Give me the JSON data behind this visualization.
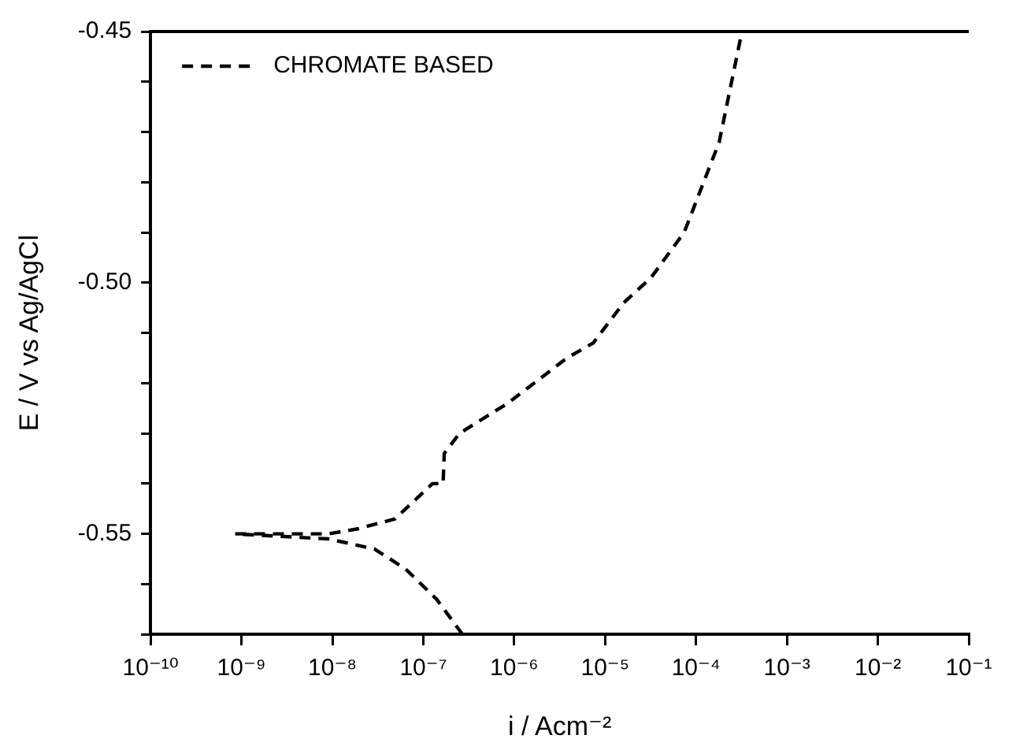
{
  "chart_data": {
    "type": "line",
    "xlabel": "i / Acm⁻²",
    "ylabel": "E / V vs Ag/AgCl",
    "log": "x",
    "grid": false,
    "legend": "top left",
    "marker": "none",
    "line_style": "dashed",
    "xlim": [
      1e-10,
      0.1
    ],
    "xticks": [
      {
        "value": 1e-10,
        "label": "10⁻¹⁰"
      },
      {
        "value": 1e-09,
        "label": "10⁻⁹"
      },
      {
        "value": 1e-08,
        "label": "10⁻⁸"
      },
      {
        "value": 1e-07,
        "label": "10⁻⁷"
      },
      {
        "value": 1e-06,
        "label": "10⁻⁶"
      },
      {
        "value": 1e-05,
        "label": "10⁻⁵"
      },
      {
        "value": 0.0001,
        "label": "10⁻⁴"
      },
      {
        "value": 0.001,
        "label": "10⁻³"
      },
      {
        "value": 0.01,
        "label": "10⁻²"
      },
      {
        "value": 0.1,
        "label": "10⁻¹"
      }
    ],
    "ylim": [
      -0.57,
      -0.45
    ],
    "yticks": [
      {
        "value": -0.57,
        "label": null
      },
      {
        "value": -0.56,
        "label": null
      },
      {
        "value": -0.55,
        "label": "-0.55"
      },
      {
        "value": -0.54,
        "label": null
      },
      {
        "value": -0.53,
        "label": null
      },
      {
        "value": -0.52,
        "label": null
      },
      {
        "value": -0.51,
        "label": null
      },
      {
        "value": -0.5,
        "label": "-0.50"
      },
      {
        "value": -0.49,
        "label": null
      },
      {
        "value": -0.48,
        "label": null
      },
      {
        "value": -0.47,
        "label": null
      },
      {
        "value": -0.46,
        "label": null
      },
      {
        "value": -0.45,
        "label": "-0.45"
      }
    ],
    "series": [
      {
        "name": "CHROMATE BASED",
        "color": "#000000",
        "x": [
          2.7e-07,
          1.4e-07,
          6.4e-08,
          2.9e-08,
          9e-09,
          8.5e-10,
          9e-09,
          1.9e-08,
          4.9e-08,
          1.26e-07,
          1.65e-07,
          1.7e-07,
          2.5e-07,
          8.5e-07,
          3.8e-06,
          7.4e-06,
          1.6e-05,
          3.2e-05,
          7.4e-05,
          0.00018,
          0.00032
        ],
        "values": [
          -0.57,
          -0.563,
          -0.557,
          -0.553,
          -0.551,
          -0.55,
          -0.55,
          -0.549,
          -0.547,
          -0.54,
          -0.54,
          -0.534,
          -0.53,
          -0.524,
          -0.515,
          -0.512,
          -0.504,
          -0.499,
          -0.49,
          -0.472,
          -0.45
        ]
      }
    ]
  }
}
